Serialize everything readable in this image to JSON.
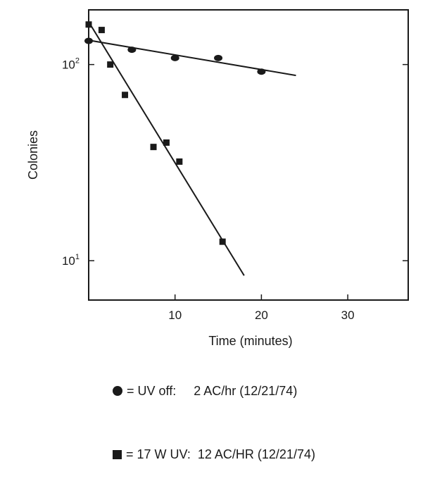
{
  "chart_data": {
    "type": "scatter",
    "xlabel": "Time (minutes)",
    "ylabel": "Colonies",
    "xlim": [
      0,
      37
    ],
    "ylim": [
      6.3,
      190
    ],
    "yscale": "log",
    "x_ticks": [
      {
        "value": 10,
        "label": "10"
      },
      {
        "value": 20,
        "label": "20"
      },
      {
        "value": 30,
        "label": "30"
      }
    ],
    "y_ticks": [
      {
        "value": 10,
        "base": "10",
        "exp": "1"
      },
      {
        "value": 100,
        "base": "10",
        "exp": "2"
      }
    ],
    "series": [
      {
        "name": "UV off",
        "marker": "circle",
        "points": [
          [
            0,
            132
          ],
          [
            5,
            119
          ],
          [
            10,
            108
          ],
          [
            15,
            108
          ],
          [
            20,
            92
          ]
        ],
        "fit": [
          [
            0,
            133
          ],
          [
            24,
            88
          ]
        ]
      },
      {
        "name": "17 W UV",
        "marker": "square",
        "points": [
          [
            0,
            160
          ],
          [
            1.5,
            150
          ],
          [
            2.5,
            100
          ],
          [
            4.2,
            70
          ],
          [
            7.5,
            38
          ],
          [
            9,
            40
          ],
          [
            10.5,
            32
          ],
          [
            15.5,
            12.5
          ]
        ],
        "fit": [
          [
            0,
            165
          ],
          [
            18,
            8.4
          ]
        ]
      }
    ],
    "grid": false
  },
  "legend": [
    {
      "symbol": "circle",
      "text": "= UV off:     2 AC/hr (12/21/74)"
    },
    {
      "symbol": "square",
      "text": "= 17 W UV:  12 AC/HR (12/21/74)"
    }
  ]
}
